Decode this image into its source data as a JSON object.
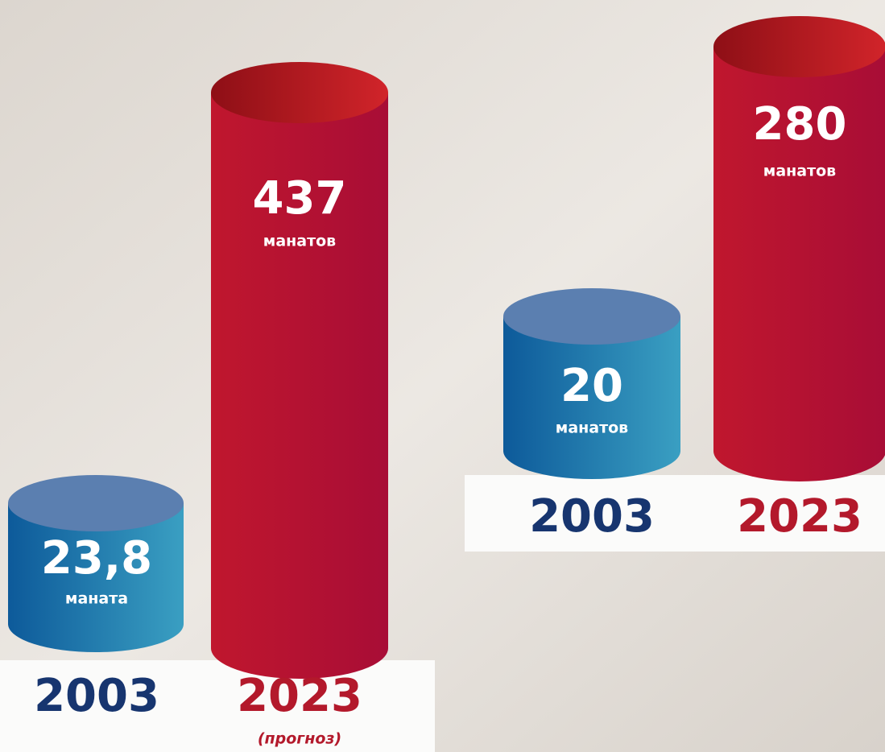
{
  "panels": [
    {
      "bars": [
        {
          "value": "23,8",
          "unit": "маната",
          "year": "2003"
        },
        {
          "value": "437",
          "unit": "манатов",
          "year": "2023",
          "note": "(прогноз)"
        }
      ]
    },
    {
      "bars": [
        {
          "value": "20",
          "unit": "манатов",
          "year": "2003"
        },
        {
          "value": "280",
          "unit": "манатов",
          "year": "2023"
        }
      ]
    }
  ]
}
